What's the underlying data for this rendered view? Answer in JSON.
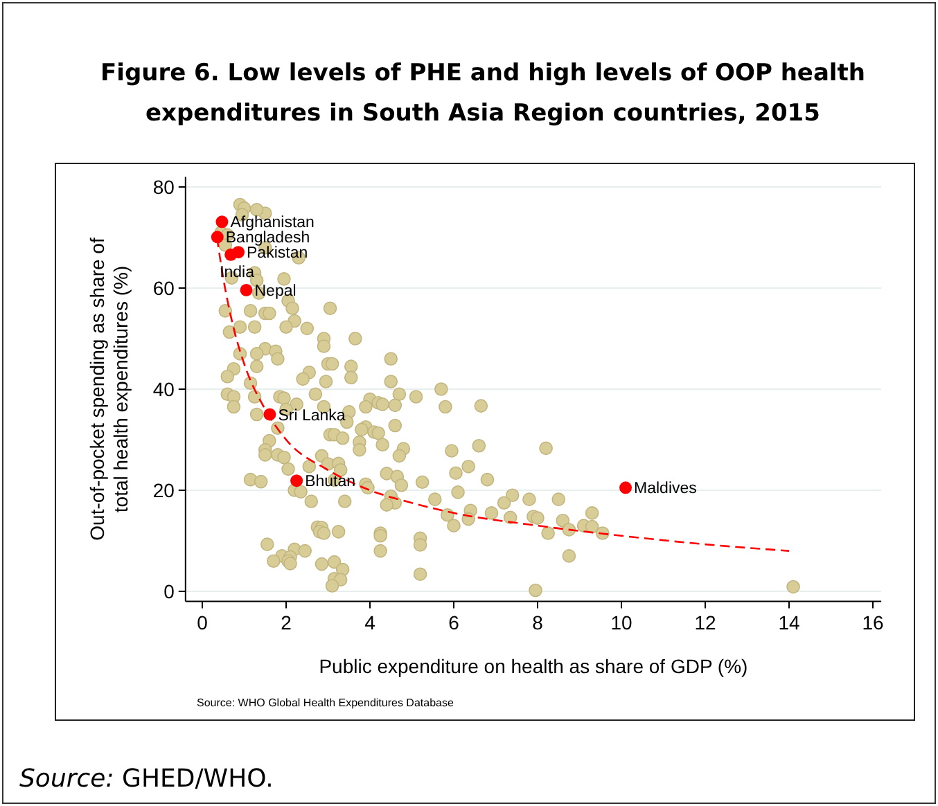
{
  "chart_data": {
    "type": "scatter",
    "title": "Figure 6. Low levels of PHE and high levels of OOP health expenditures in South Asia Region countries, 2015",
    "xlabel": "Public expenditure on health as share of GDP (%)",
    "ylabel": "Out-of-pocket spending as share of total health expenditures (%)",
    "xlim": [
      -0.4,
      16.2
    ],
    "ylim": [
      -2,
      82
    ],
    "xticks": [
      0,
      2,
      4,
      6,
      8,
      10,
      12,
      14,
      16
    ],
    "yticks": [
      0,
      20,
      40,
      60,
      80
    ],
    "grid": "y",
    "marker": "circle",
    "series": [
      {
        "color": "#d9cd97",
        "x": [
          0.9,
          1.0,
          0.95,
          1.5,
          1.3,
          0.45,
          0.6,
          0.55,
          1.5,
          2.3,
          1.25,
          0.7,
          1.3,
          1.95,
          2.05,
          1.35,
          0.55,
          1.15,
          1.5,
          1.6,
          2.15,
          3.05,
          2.2,
          2.0,
          0.9,
          1.25,
          2.5,
          0.65,
          2.9,
          3.65,
          2.9,
          1.5,
          1.75,
          1.3,
          0.9,
          1.8,
          4.5,
          3.0,
          3.1,
          1.3,
          3.55,
          0.75,
          2.55,
          0.6,
          2.4,
          2.95,
          3.55,
          4.5,
          1.15,
          5.7,
          4.7,
          5.1,
          0.6,
          0.75,
          1.25,
          1.85,
          1.95,
          2.7,
          4.0,
          4.2,
          4.3,
          3.9,
          4.6,
          2.25,
          2.9,
          5.8,
          6.65,
          0.75,
          2.0,
          1.3,
          3.5,
          3.45,
          4.6,
          3.9,
          3.8,
          4.1,
          4.2,
          3.05,
          3.15,
          3.35,
          1.8,
          1.6,
          3.75,
          4.3,
          4.8,
          3.75,
          6.6,
          5.95,
          8.2,
          1.5,
          1.5,
          1.8,
          1.95,
          2.85,
          4.7,
          3.0,
          3.25,
          3.3,
          2.05,
          2.55,
          6.05,
          6.35,
          4.4,
          4.65,
          1.15,
          1.4,
          3.15,
          5.25,
          6.8,
          4.75,
          3.9,
          3.95,
          2.2,
          2.35,
          2.6,
          4.5,
          4.6,
          4.4,
          3.4,
          5.55,
          6.1,
          7.4,
          7.2,
          7.8,
          8.5,
          6.4,
          5.85,
          6.9,
          6.35,
          7.35,
          7.9,
          8.0,
          8.6,
          9.3,
          9.1,
          9.3,
          8.25,
          8.75,
          9.55,
          6.0,
          2.75,
          2.85,
          2.8,
          2.9,
          3.25,
          4.25,
          4.25,
          5.2,
          5.2,
          4.25,
          1.55,
          2.2,
          2.45,
          1.9,
          2.1,
          1.7,
          2.05,
          2.1,
          2.85,
          3.15,
          3.35,
          3.15,
          3.3,
          3.1,
          5.2,
          8.75,
          7.95,
          14.1
        ],
        "values": [
          76.5,
          75.8,
          74.5,
          74.8,
          75.5,
          71,
          70.5,
          68.5,
          68,
          66,
          63,
          62,
          61.5,
          61.8,
          57.5,
          59,
          55.5,
          55.5,
          55,
          55,
          56,
          56,
          53.5,
          52.3,
          52.3,
          52.3,
          52,
          51.3,
          50,
          50,
          48.5,
          48,
          47.5,
          47,
          47,
          46,
          46,
          45,
          45,
          44.5,
          44.5,
          44,
          43.3,
          42.5,
          42,
          41.5,
          42.3,
          41.5,
          41.2,
          40,
          39,
          38.5,
          39,
          38.5,
          38.5,
          38.5,
          38.2,
          39,
          38,
          37.3,
          37,
          36.5,
          36.8,
          37,
          36.5,
          36.5,
          36.7,
          36.5,
          36,
          35,
          35.5,
          33.5,
          32.8,
          32.5,
          32,
          31.5,
          31.3,
          31,
          31,
          30.3,
          32.3,
          29.8,
          29.5,
          29,
          28.2,
          28,
          28.8,
          27.8,
          28.3,
          28,
          27,
          27,
          26.5,
          26.8,
          26.8,
          25.2,
          25.3,
          24,
          24.2,
          24.7,
          23.4,
          24.7,
          23.3,
          22.7,
          22.1,
          21.7,
          22,
          21.6,
          22.1,
          21,
          21.2,
          20.5,
          20,
          19.7,
          17.8,
          18.8,
          17.5,
          17.1,
          17.8,
          18.2,
          19.6,
          19,
          17.5,
          18.2,
          18.2,
          16,
          15.1,
          15.5,
          14.3,
          14.6,
          14.8,
          14.5,
          14,
          15.5,
          13,
          12.8,
          11.5,
          12.2,
          11.5,
          13,
          12.7,
          12.6,
          11.8,
          11.5,
          11.8,
          11.5,
          11,
          10.5,
          9.2,
          8,
          9.3,
          8.3,
          8,
          7,
          6.8,
          6,
          6,
          5.5,
          5.4,
          5.8,
          4.3,
          2.5,
          2.3,
          1.1,
          3.4,
          7,
          0.2,
          0.9
        ]
      },
      {
        "type": "line",
        "color": "#ff0000",
        "line_style": "dashed",
        "marker": "none",
        "x": [
          0.35,
          0.5,
          0.75,
          1.0,
          1.5,
          2.0,
          3.0,
          4.0,
          5.0,
          6.0,
          8.0,
          10.0,
          12.0,
          14.0
        ],
        "values": [
          70,
          62,
          52,
          45,
          36,
          30,
          24,
          20,
          17.5,
          15.5,
          13,
          11,
          9.3,
          8
        ]
      },
      {
        "color": "#ff0000",
        "x": [
          0.47,
          0.36,
          0.86,
          0.68,
          1.05,
          1.61,
          2.25,
          10.1
        ],
        "values": [
          73.1,
          70.1,
          67.1,
          66.6,
          59.6,
          35.0,
          21.9,
          20.5
        ]
      }
    ],
    "annotations": [
      {
        "text": "Afghanistan",
        "x": 0.47,
        "y": 73.1
      },
      {
        "text": "Bangladesh",
        "x": 0.36,
        "y": 70.1
      },
      {
        "text": "Pakistan",
        "x": 0.86,
        "y": 67.1
      },
      {
        "text": "India",
        "x": 0.68,
        "y": 66.6
      },
      {
        "text": "Nepal",
        "x": 1.05,
        "y": 59.6
      },
      {
        "text": "Sri Lanka",
        "x": 1.61,
        "y": 35.0
      },
      {
        "text": "Bhutan",
        "x": 2.25,
        "y": 21.9
      },
      {
        "text": "Maldives",
        "x": 10.1,
        "y": 20.5
      },
      "Source: WHO Global Health Expenditures Database",
      "Source: GHED/WHO."
    ]
  }
}
